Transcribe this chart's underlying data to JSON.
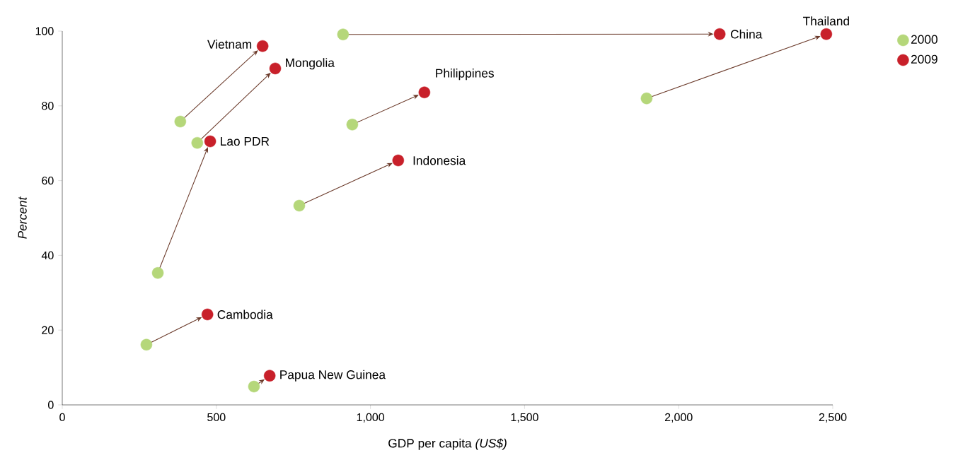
{
  "chart_data": {
    "type": "scatter",
    "xlabel": "GDP per capita *(US$)*",
    "ylabel": "Percent",
    "xlim": [
      0,
      2500
    ],
    "ylim": [
      0,
      100
    ],
    "xticks": [
      0,
      500,
      {
        "value": 1000,
        "label": "1,000"
      },
      {
        "value": 1500,
        "label": "1,500"
      },
      {
        "value": 2000,
        "label": "2,000"
      },
      {
        "value": 2500,
        "label": "2,500"
      }
    ],
    "yticks": [
      0,
      20,
      40,
      60,
      80,
      100
    ],
    "grid": false,
    "legend": "top right",
    "marker": "circle",
    "series": [
      {
        "name": "2000",
        "color": "#b5d77a",
        "x": [
          383,
          438,
          310,
          273,
          622,
          911,
          941,
          769,
          1896
        ],
        "values": [
          75.8,
          70.1,
          35.3,
          16.1,
          4.9,
          99.1,
          75,
          53.3,
          82
        ]
      },
      {
        "name": "2009",
        "color": "#c8202a",
        "x": [
          650,
          691,
          480,
          471,
          673,
          2133,
          1175,
          1090,
          2479
        ],
        "values": [
          96,
          90,
          70.5,
          24.2,
          7.8,
          99.2,
          83.6,
          65.4,
          99.2
        ]
      }
    ],
    "annotations": [
      {
        "text": "Vietnam",
        "x": 650,
        "y": 96
      },
      {
        "text": "Mongolia",
        "x": 691,
        "y": 90
      },
      {
        "text": "Lao PDR",
        "x": 480,
        "y": 70.5
      },
      {
        "text": "Cambodia",
        "x": 471,
        "y": 24.2
      },
      {
        "text": "Papua New Guinea",
        "x": 673,
        "y": 7.8
      },
      {
        "text": "China",
        "x": 2133,
        "y": 99.2
      },
      {
        "text": "Philippines",
        "x": 1175,
        "y": 83.6
      },
      {
        "text": "Indonesia",
        "x": 1090,
        "y": 65.4
      },
      {
        "text": "Thailand",
        "x": 2479,
        "y": 99.2
      }
    ]
  }
}
